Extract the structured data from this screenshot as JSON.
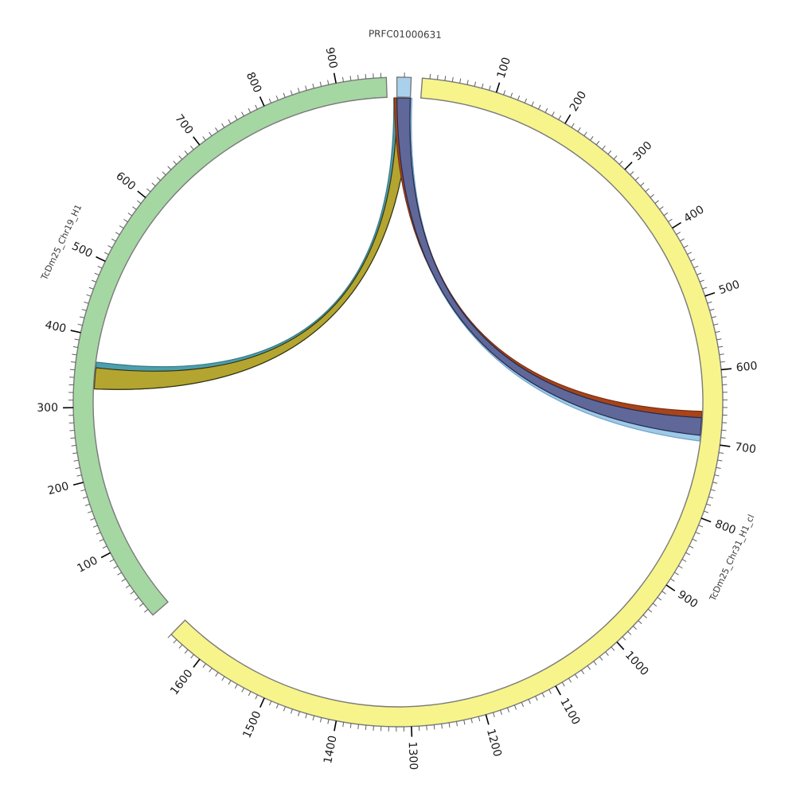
{
  "chart_data": {
    "type": "circos",
    "background": "#ffffff",
    "geometry": {
      "center": [
        500,
        505
      ],
      "outer_radius": 408,
      "inner_radius": 383,
      "link_radius": 382,
      "deg_per_unit": 0.1333333,
      "tick_len_minor": 6,
      "tick_len_major": 13,
      "tick_label_radius": 427,
      "band_stroke": "#7a7a7a",
      "minor_tick_color": "#606060",
      "major_tick_color": "#000000",
      "tick_label_color": "#1a1a1a",
      "tick_label_font_size": 14,
      "name_label_color": "#3a3a3a"
    },
    "segments": [
      {
        "name": "PRFC01000631",
        "slug": "prfc01000631",
        "fill": "#a9d1ec",
        "start_angle": -0.2,
        "length_units": 19,
        "minor_tick_every": 10,
        "major_tick_every": 100,
        "major_tick_labels": [],
        "name_label_angle": 1.1,
        "name_label_radius": 462,
        "name_font_size": 12
      },
      {
        "name": "TcDm25_Chr31_H1_cl",
        "slug": "tcdm25-chr31-h1-cl",
        "fill": "#f7f48b",
        "start_angle": 4.3,
        "length_units": 1650,
        "minor_tick_every": 10,
        "major_tick_every": 100,
        "major_tick_labels": [
          "100",
          "200",
          "300",
          "400",
          "500",
          "600",
          "700",
          "800",
          "900",
          "1000",
          "1100",
          "1200",
          "1300",
          "1400",
          "1500",
          "1600"
        ],
        "name_label_angle": 115.0,
        "name_label_radius": 463,
        "name_font_size": 11
      },
      {
        "name": "TcDm25_Chr19_H1",
        "slug": "tcdm25-chr19-h1",
        "fill": "#a5d7a2",
        "start_angle": 229.0,
        "length_units": 967,
        "minor_tick_every": 10,
        "major_tick_every": 100,
        "major_tick_labels": [
          "100",
          "200",
          "300",
          "400",
          "500",
          "600",
          "700",
          "800",
          "900"
        ],
        "name_label_angle": 295.4,
        "name_label_radius": 468,
        "name_font_size": 11
      }
    ],
    "links": [
      {
        "name": "accent-teal-edge",
        "source": "prfc01000631",
        "s_range": [
          0,
          19
        ],
        "s_pad_deg": [
          -0.6,
          0
        ],
        "target": "tcdm25-chr19-h1",
        "t_range": [
          326,
          364
        ],
        "fill": "#4d9fae",
        "stroke": "#357a86"
      },
      {
        "name": "link-prfc-to-chr19",
        "source": "prfc01000631",
        "s_range": [
          0,
          19
        ],
        "s_pad_deg": [
          0,
          0
        ],
        "target": "tcdm25-chr19-h1",
        "t_range": [
          326,
          356
        ],
        "fill": "#b3a52f",
        "stroke": "#33310f"
      },
      {
        "name": "accent-lightblue-edge",
        "source": "prfc01000631",
        "s_range": [
          0,
          19
        ],
        "s_pad_deg": [
          0,
          0.3
        ],
        "target": "tcdm25-chr31-h1-cl",
        "t_range": [
          687,
          698
        ],
        "fill": "#9fc9e8",
        "stroke": "#6fa6cc"
      },
      {
        "name": "accent-red-edge",
        "source": "prfc01000631",
        "s_range": [
          0,
          19
        ],
        "s_pad_deg": [
          -0.5,
          0
        ],
        "target": "tcdm25-chr31-h1-cl",
        "t_range": [
          656,
          667
        ],
        "fill": "#a8431a",
        "stroke": "#7c3010"
      },
      {
        "name": "link-prfc-to-chr31",
        "source": "prfc01000631",
        "s_range": [
          0,
          19
        ],
        "s_pad_deg": [
          0,
          0
        ],
        "target": "tcdm25-chr31-h1-cl",
        "t_range": [
          665,
          690
        ],
        "fill": "#5f6898",
        "stroke": "#232a4e"
      }
    ]
  }
}
